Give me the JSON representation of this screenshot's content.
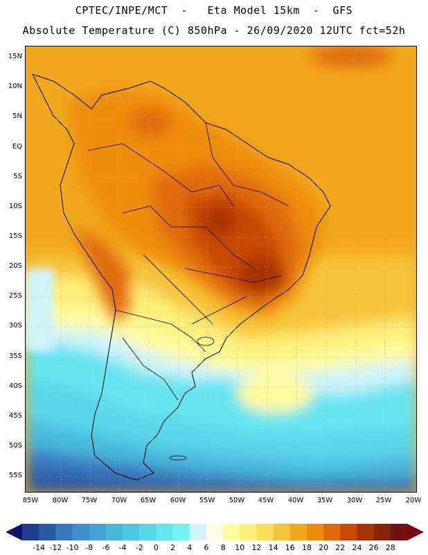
{
  "header": {
    "line1": "CPTEC/INPE/MCT  -   Eta Model 15km  -  GFS",
    "line2": "Absolute Temperature (C) 850hPa - 26/09/2020 12UTC fct=52h"
  },
  "map": {
    "region": "South America",
    "lat_labels": [
      "15N",
      "10N",
      "5N",
      "EQ",
      "5S",
      "10S",
      "15S",
      "20S",
      "25S",
      "30S",
      "35S",
      "40S",
      "45S",
      "50S",
      "55S"
    ],
    "lon_labels": [
      "85W",
      "80W",
      "75W",
      "70W",
      "65W",
      "60W",
      "55W",
      "50W",
      "45W",
      "40W",
      "35W",
      "30W",
      "25W",
      "20W"
    ]
  },
  "colorbar": {
    "labels": [
      "-14",
      "-12",
      "-10",
      "-8",
      "-6",
      "-4",
      "-2",
      "0",
      "2",
      "4",
      "6",
      "8",
      "10",
      "12",
      "14",
      "16",
      "18",
      "20",
      "22",
      "24",
      "26",
      "28"
    ],
    "colors": [
      "#1e3f8c",
      "#2a5aa6",
      "#3a78be",
      "#3f8fcc",
      "#42a3d4",
      "#48b8dc",
      "#50c8e2",
      "#5ad6ea",
      "#66e4f0",
      "#70f4f4",
      "#cff4fa",
      "#fffbe6",
      "#fffb9e",
      "#ffee7a",
      "#ffdc5a",
      "#f6c43a",
      "#f2a81c",
      "#ee8c0c",
      "#e06a08",
      "#c84a06",
      "#a83206",
      "#8a2208",
      "#6e1410"
    ],
    "left_cap": "#101070",
    "right_cap": "#80001a"
  }
}
